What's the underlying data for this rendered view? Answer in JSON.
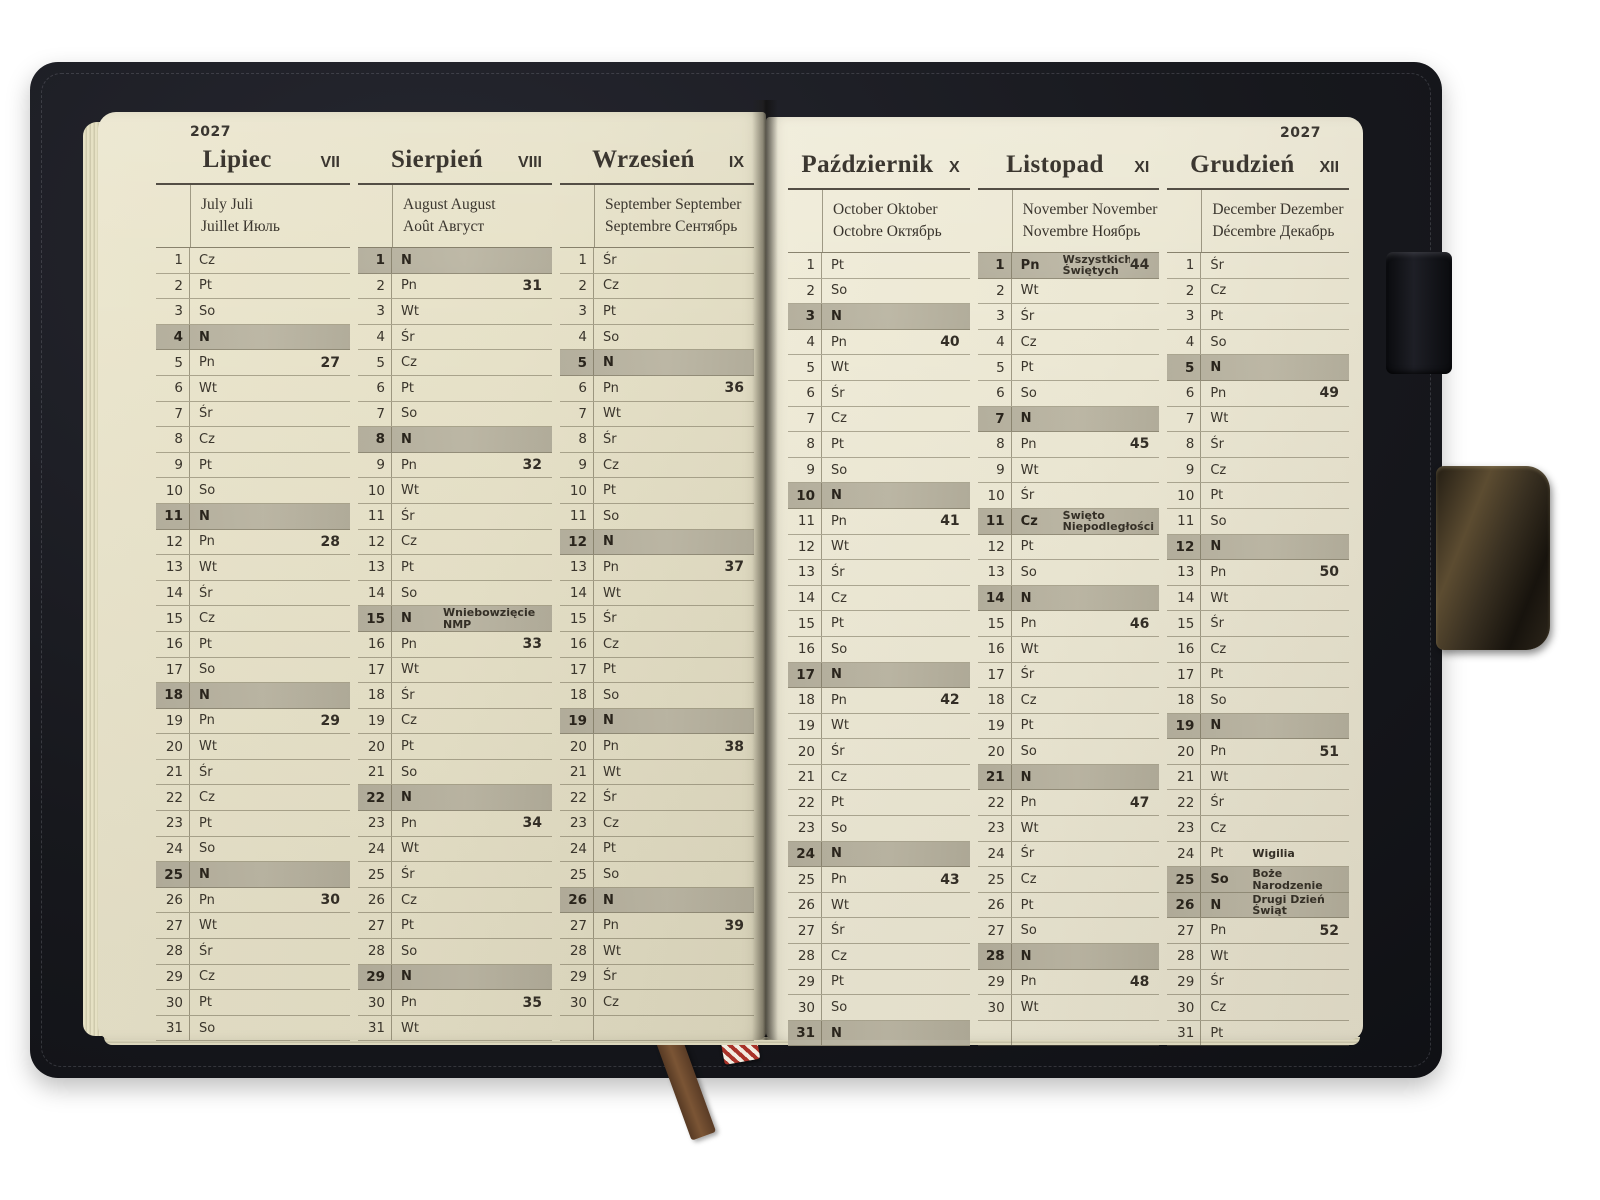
{
  "object": "open paper planner, yearly overview July–December 2027, Polish edition",
  "year": "2027",
  "colors": {
    "cover": "#17181d",
    "page_left": "#e8e3ca",
    "page_right": "#ece8d5",
    "highlight_bar": "#b7b2a0",
    "ink": "#332e26",
    "ribbon": "#6d4a2d",
    "tag_stripes": [
      "#a83228",
      "#f2ece0"
    ]
  },
  "accessories": [
    "ribbon-bookmark",
    "striped-bookmark-tag",
    "pen-loop",
    "clasp-strap",
    "page-edges"
  ],
  "pages": [
    {
      "side": "left",
      "months": [
        {
          "name": "Lipiec",
          "roman": "VII",
          "subtitle": [
            "July Juli",
            "Juillet Июль"
          ],
          "empty_rows": 0,
          "days": [
            {
              "d": 1,
              "w": "Cz"
            },
            {
              "d": 2,
              "w": "Pt"
            },
            {
              "d": 3,
              "w": "So"
            },
            {
              "d": 4,
              "w": "N",
              "hl": 1
            },
            {
              "d": 5,
              "w": "Pn",
              "wk": 27
            },
            {
              "d": 6,
              "w": "Wt"
            },
            {
              "d": 7,
              "w": "Śr"
            },
            {
              "d": 8,
              "w": "Cz"
            },
            {
              "d": 9,
              "w": "Pt"
            },
            {
              "d": 10,
              "w": "So"
            },
            {
              "d": 11,
              "w": "N",
              "hl": 1
            },
            {
              "d": 12,
              "w": "Pn",
              "wk": 28
            },
            {
              "d": 13,
              "w": "Wt"
            },
            {
              "d": 14,
              "w": "Śr"
            },
            {
              "d": 15,
              "w": "Cz"
            },
            {
              "d": 16,
              "w": "Pt"
            },
            {
              "d": 17,
              "w": "So"
            },
            {
              "d": 18,
              "w": "N",
              "hl": 1
            },
            {
              "d": 19,
              "w": "Pn",
              "wk": 29
            },
            {
              "d": 20,
              "w": "Wt"
            },
            {
              "d": 21,
              "w": "Śr"
            },
            {
              "d": 22,
              "w": "Cz"
            },
            {
              "d": 23,
              "w": "Pt"
            },
            {
              "d": 24,
              "w": "So"
            },
            {
              "d": 25,
              "w": "N",
              "hl": 1
            },
            {
              "d": 26,
              "w": "Pn",
              "wk": 30
            },
            {
              "d": 27,
              "w": "Wt"
            },
            {
              "d": 28,
              "w": "Śr"
            },
            {
              "d": 29,
              "w": "Cz"
            },
            {
              "d": 30,
              "w": "Pt"
            },
            {
              "d": 31,
              "w": "So"
            }
          ]
        },
        {
          "name": "Sierpień",
          "roman": "VIII",
          "subtitle": [
            "August August",
            "Août Август"
          ],
          "empty_rows": 0,
          "days": [
            {
              "d": 1,
              "w": "N",
              "hl": 1
            },
            {
              "d": 2,
              "w": "Pn",
              "wk": 31
            },
            {
              "d": 3,
              "w": "Wt"
            },
            {
              "d": 4,
              "w": "Śr"
            },
            {
              "d": 5,
              "w": "Cz"
            },
            {
              "d": 6,
              "w": "Pt"
            },
            {
              "d": 7,
              "w": "So"
            },
            {
              "d": 8,
              "w": "N",
              "hl": 1
            },
            {
              "d": 9,
              "w": "Pn",
              "wk": 32
            },
            {
              "d": 10,
              "w": "Wt"
            },
            {
              "d": 11,
              "w": "Śr"
            },
            {
              "d": 12,
              "w": "Cz"
            },
            {
              "d": 13,
              "w": "Pt"
            },
            {
              "d": 14,
              "w": "So"
            },
            {
              "d": 15,
              "w": "N",
              "hl": 1,
              "note": "Wniebowzięcie NMP"
            },
            {
              "d": 16,
              "w": "Pn",
              "wk": 33
            },
            {
              "d": 17,
              "w": "Wt"
            },
            {
              "d": 18,
              "w": "Śr"
            },
            {
              "d": 19,
              "w": "Cz"
            },
            {
              "d": 20,
              "w": "Pt"
            },
            {
              "d": 21,
              "w": "So"
            },
            {
              "d": 22,
              "w": "N",
              "hl": 1
            },
            {
              "d": 23,
              "w": "Pn",
              "wk": 34
            },
            {
              "d": 24,
              "w": "Wt"
            },
            {
              "d": 25,
              "w": "Śr"
            },
            {
              "d": 26,
              "w": "Cz"
            },
            {
              "d": 27,
              "w": "Pt"
            },
            {
              "d": 28,
              "w": "So"
            },
            {
              "d": 29,
              "w": "N",
              "hl": 1
            },
            {
              "d": 30,
              "w": "Pn",
              "wk": 35
            },
            {
              "d": 31,
              "w": "Wt"
            }
          ]
        },
        {
          "name": "Wrzesień",
          "roman": "IX",
          "subtitle": [
            "September September",
            "Septembre Сентябрь"
          ],
          "empty_rows": 1,
          "days": [
            {
              "d": 1,
              "w": "Śr"
            },
            {
              "d": 2,
              "w": "Cz"
            },
            {
              "d": 3,
              "w": "Pt"
            },
            {
              "d": 4,
              "w": "So"
            },
            {
              "d": 5,
              "w": "N",
              "hl": 1
            },
            {
              "d": 6,
              "w": "Pn",
              "wk": 36
            },
            {
              "d": 7,
              "w": "Wt"
            },
            {
              "d": 8,
              "w": "Śr"
            },
            {
              "d": 9,
              "w": "Cz"
            },
            {
              "d": 10,
              "w": "Pt"
            },
            {
              "d": 11,
              "w": "So"
            },
            {
              "d": 12,
              "w": "N",
              "hl": 1
            },
            {
              "d": 13,
              "w": "Pn",
              "wk": 37
            },
            {
              "d": 14,
              "w": "Wt"
            },
            {
              "d": 15,
              "w": "Śr"
            },
            {
              "d": 16,
              "w": "Cz"
            },
            {
              "d": 17,
              "w": "Pt"
            },
            {
              "d": 18,
              "w": "So"
            },
            {
              "d": 19,
              "w": "N",
              "hl": 1
            },
            {
              "d": 20,
              "w": "Pn",
              "wk": 38
            },
            {
              "d": 21,
              "w": "Wt"
            },
            {
              "d": 22,
              "w": "Śr"
            },
            {
              "d": 23,
              "w": "Cz"
            },
            {
              "d": 24,
              "w": "Pt"
            },
            {
              "d": 25,
              "w": "So"
            },
            {
              "d": 26,
              "w": "N",
              "hl": 1
            },
            {
              "d": 27,
              "w": "Pn",
              "wk": 39
            },
            {
              "d": 28,
              "w": "Wt"
            },
            {
              "d": 29,
              "w": "Śr"
            },
            {
              "d": 30,
              "w": "Cz"
            }
          ]
        }
      ]
    },
    {
      "side": "right",
      "months": [
        {
          "name": "Październik",
          "roman": "X",
          "subtitle": [
            "October Oktober",
            "Octobre Октябрь"
          ],
          "empty_rows": 0,
          "days": [
            {
              "d": 1,
              "w": "Pt"
            },
            {
              "d": 2,
              "w": "So"
            },
            {
              "d": 3,
              "w": "N",
              "hl": 1
            },
            {
              "d": 4,
              "w": "Pn",
              "wk": 40
            },
            {
              "d": 5,
              "w": "Wt"
            },
            {
              "d": 6,
              "w": "Śr"
            },
            {
              "d": 7,
              "w": "Cz"
            },
            {
              "d": 8,
              "w": "Pt"
            },
            {
              "d": 9,
              "w": "So"
            },
            {
              "d": 10,
              "w": "N",
              "hl": 1
            },
            {
              "d": 11,
              "w": "Pn",
              "wk": 41
            },
            {
              "d": 12,
              "w": "Wt"
            },
            {
              "d": 13,
              "w": "Śr"
            },
            {
              "d": 14,
              "w": "Cz"
            },
            {
              "d": 15,
              "w": "Pt"
            },
            {
              "d": 16,
              "w": "So"
            },
            {
              "d": 17,
              "w": "N",
              "hl": 1
            },
            {
              "d": 18,
              "w": "Pn",
              "wk": 42
            },
            {
              "d": 19,
              "w": "Wt"
            },
            {
              "d": 20,
              "w": "Śr"
            },
            {
              "d": 21,
              "w": "Cz"
            },
            {
              "d": 22,
              "w": "Pt"
            },
            {
              "d": 23,
              "w": "So"
            },
            {
              "d": 24,
              "w": "N",
              "hl": 1
            },
            {
              "d": 25,
              "w": "Pn",
              "wk": 43
            },
            {
              "d": 26,
              "w": "Wt"
            },
            {
              "d": 27,
              "w": "Śr"
            },
            {
              "d": 28,
              "w": "Cz"
            },
            {
              "d": 29,
              "w": "Pt"
            },
            {
              "d": 30,
              "w": "So"
            },
            {
              "d": 31,
              "w": "N",
              "hl": 1
            }
          ]
        },
        {
          "name": "Listopad",
          "roman": "XI",
          "subtitle": [
            "November November",
            "Novembre Ноябрь"
          ],
          "empty_rows": 1,
          "days": [
            {
              "d": 1,
              "w": "Pn",
              "hl": 1,
              "note": "Wszystkich Świętych",
              "wk": 44
            },
            {
              "d": 2,
              "w": "Wt"
            },
            {
              "d": 3,
              "w": "Śr"
            },
            {
              "d": 4,
              "w": "Cz"
            },
            {
              "d": 5,
              "w": "Pt"
            },
            {
              "d": 6,
              "w": "So"
            },
            {
              "d": 7,
              "w": "N",
              "hl": 1
            },
            {
              "d": 8,
              "w": "Pn",
              "wk": 45
            },
            {
              "d": 9,
              "w": "Wt"
            },
            {
              "d": 10,
              "w": "Śr"
            },
            {
              "d": 11,
              "w": "Cz",
              "hl": 1,
              "note": "Święto Niepodległości"
            },
            {
              "d": 12,
              "w": "Pt"
            },
            {
              "d": 13,
              "w": "So"
            },
            {
              "d": 14,
              "w": "N",
              "hl": 1
            },
            {
              "d": 15,
              "w": "Pn",
              "wk": 46
            },
            {
              "d": 16,
              "w": "Wt"
            },
            {
              "d": 17,
              "w": "Śr"
            },
            {
              "d": 18,
              "w": "Cz"
            },
            {
              "d": 19,
              "w": "Pt"
            },
            {
              "d": 20,
              "w": "So"
            },
            {
              "d": 21,
              "w": "N",
              "hl": 1
            },
            {
              "d": 22,
              "w": "Pn",
              "wk": 47
            },
            {
              "d": 23,
              "w": "Wt"
            },
            {
              "d": 24,
              "w": "Śr"
            },
            {
              "d": 25,
              "w": "Cz"
            },
            {
              "d": 26,
              "w": "Pt"
            },
            {
              "d": 27,
              "w": "So"
            },
            {
              "d": 28,
              "w": "N",
              "hl": 1
            },
            {
              "d": 29,
              "w": "Pn",
              "wk": 48
            },
            {
              "d": 30,
              "w": "Wt"
            }
          ]
        },
        {
          "name": "Grudzień",
          "roman": "XII",
          "subtitle": [
            "December Dezember",
            "Décembre Декабрь"
          ],
          "empty_rows": 0,
          "days": [
            {
              "d": 1,
              "w": "Śr"
            },
            {
              "d": 2,
              "w": "Cz"
            },
            {
              "d": 3,
              "w": "Pt"
            },
            {
              "d": 4,
              "w": "So"
            },
            {
              "d": 5,
              "w": "N",
              "hl": 1
            },
            {
              "d": 6,
              "w": "Pn",
              "wk": 49
            },
            {
              "d": 7,
              "w": "Wt"
            },
            {
              "d": 8,
              "w": "Śr"
            },
            {
              "d": 9,
              "w": "Cz"
            },
            {
              "d": 10,
              "w": "Pt"
            },
            {
              "d": 11,
              "w": "So"
            },
            {
              "d": 12,
              "w": "N",
              "hl": 1
            },
            {
              "d": 13,
              "w": "Pn",
              "wk": 50
            },
            {
              "d": 14,
              "w": "Wt"
            },
            {
              "d": 15,
              "w": "Śr"
            },
            {
              "d": 16,
              "w": "Cz"
            },
            {
              "d": 17,
              "w": "Pt"
            },
            {
              "d": 18,
              "w": "So"
            },
            {
              "d": 19,
              "w": "N",
              "hl": 1
            },
            {
              "d": 20,
              "w": "Pn",
              "wk": 51
            },
            {
              "d": 21,
              "w": "Wt"
            },
            {
              "d": 22,
              "w": "Śr"
            },
            {
              "d": 23,
              "w": "Cz"
            },
            {
              "d": 24,
              "w": "Pt",
              "note": "Wigilia"
            },
            {
              "d": 25,
              "w": "So",
              "hl": 1,
              "note": "Boże Narodzenie"
            },
            {
              "d": 26,
              "w": "N",
              "hl": 1,
              "note": "Drugi Dzień Świąt"
            },
            {
              "d": 27,
              "w": "Pn",
              "wk": 52
            },
            {
              "d": 28,
              "w": "Wt"
            },
            {
              "d": 29,
              "w": "Śr"
            },
            {
              "d": 30,
              "w": "Cz"
            },
            {
              "d": 31,
              "w": "Pt"
            }
          ]
        }
      ]
    }
  ]
}
